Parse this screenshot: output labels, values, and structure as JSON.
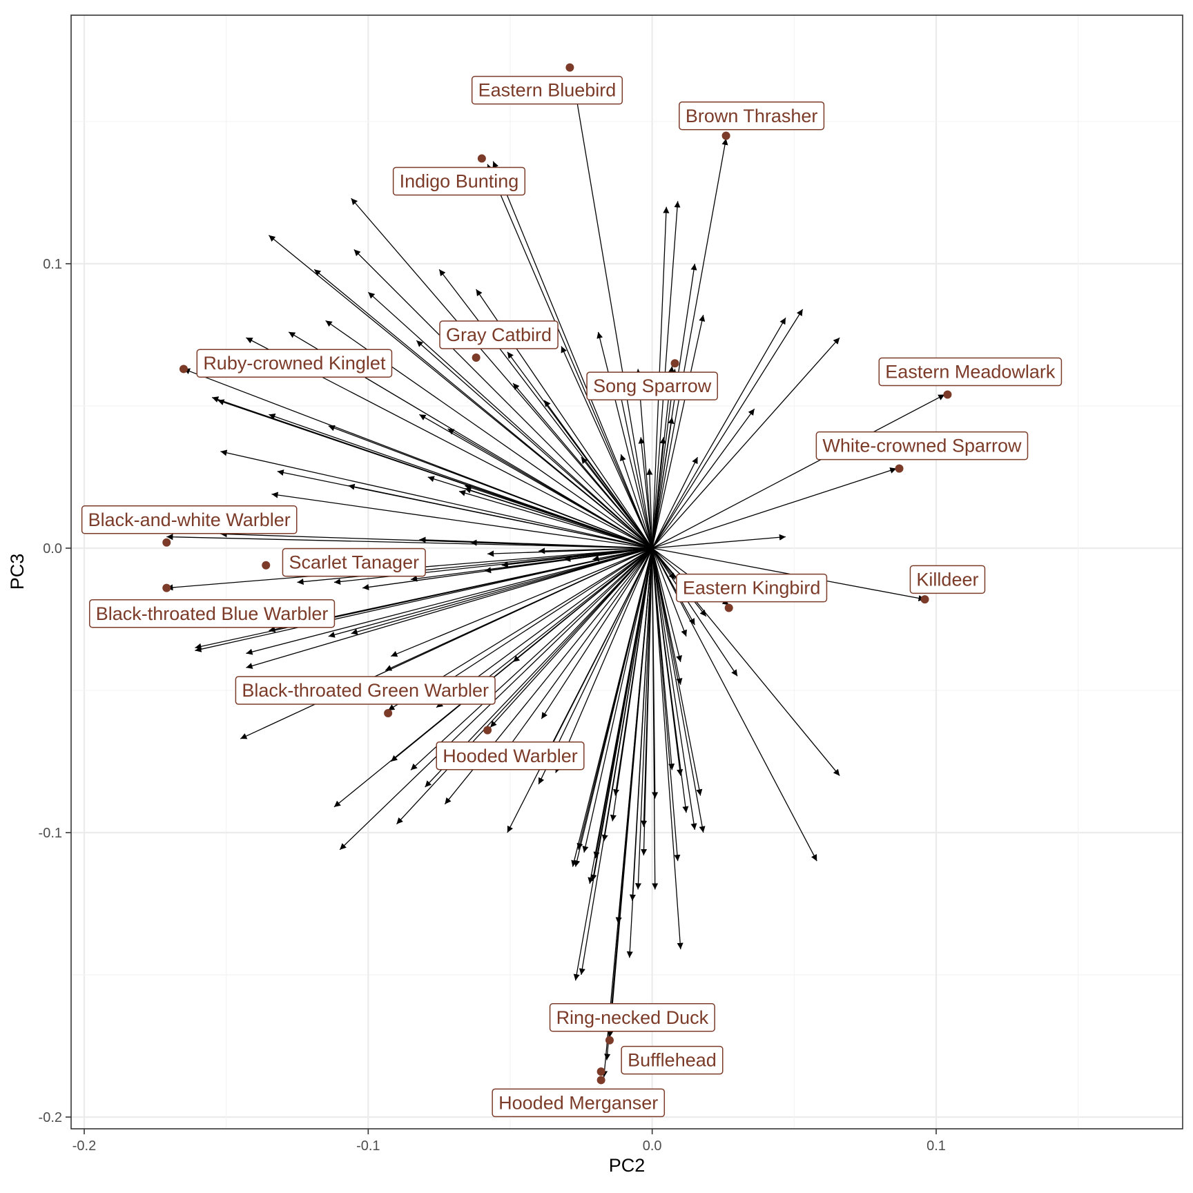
{
  "chart_data": {
    "type": "scatter",
    "title": "",
    "xlabel": "PC2",
    "ylabel": "PC3",
    "xlim": [
      -0.2,
      0.19
    ],
    "ylim": [
      -0.2,
      0.19
    ],
    "x_ticks": [
      -0.2,
      -0.1,
      0.0,
      0.1
    ],
    "y_ticks": [
      0.1,
      0.0,
      -0.1,
      -0.2
    ],
    "x_tick_labels": [
      "-0.2",
      "-0.1",
      "0.0",
      "0.1"
    ],
    "y_tick_labels": [
      "0.1",
      "0.0",
      "-0.1",
      "-0.2"
    ],
    "grid": true,
    "colors": {
      "point": "#7b3b28",
      "arrow": "#000000",
      "grid": "#ebebeb"
    },
    "labeled_points": [
      {
        "name": "Eastern Bluebird",
        "x": -0.029,
        "y": 0.169,
        "label_x": -0.037,
        "label_y": 0.161
      },
      {
        "name": "Brown Thrasher",
        "x": 0.026,
        "y": 0.145,
        "label_x": 0.035,
        "label_y": 0.152
      },
      {
        "name": "Indigo Bunting",
        "x": -0.06,
        "y": 0.137,
        "label_x": -0.068,
        "label_y": 0.129
      },
      {
        "name": "Gray Catbird",
        "x": -0.062,
        "y": 0.067,
        "label_x": -0.054,
        "label_y": 0.075
      },
      {
        "name": "Song Sparrow",
        "x": 0.008,
        "y": 0.065,
        "label_x": 0.0,
        "label_y": 0.057
      },
      {
        "name": "Ruby-crowned Kinglet",
        "x": -0.165,
        "y": 0.063,
        "label_x": -0.126,
        "label_y": 0.065
      },
      {
        "name": "Eastern Meadowlark",
        "x": 0.104,
        "y": 0.054,
        "label_x": 0.112,
        "label_y": 0.062
      },
      {
        "name": "White-crowned Sparrow",
        "x": 0.087,
        "y": 0.028,
        "label_x": 0.095,
        "label_y": 0.036
      },
      {
        "name": "Black-and-white Warbler",
        "x": -0.171,
        "y": 0.002,
        "label_x": -0.163,
        "label_y": 0.01
      },
      {
        "name": "Scarlet Tanager",
        "x": -0.136,
        "y": -0.006,
        "label_x": -0.105,
        "label_y": -0.005
      },
      {
        "name": "Killdeer",
        "x": 0.096,
        "y": -0.018,
        "label_x": 0.104,
        "label_y": -0.011
      },
      {
        "name": "Eastern Kingbird",
        "x": 0.027,
        "y": -0.021,
        "label_x": 0.035,
        "label_y": -0.014
      },
      {
        "name": "Black-throated Blue Warbler",
        "x": -0.171,
        "y": -0.014,
        "label_x": -0.155,
        "label_y": -0.023
      },
      {
        "name": "Black-throated Green Warbler",
        "x": -0.093,
        "y": -0.058,
        "label_x": -0.101,
        "label_y": -0.05
      },
      {
        "name": "Hooded Warbler",
        "x": -0.058,
        "y": -0.064,
        "label_x": -0.05,
        "label_y": -0.073
      },
      {
        "name": "Ring-necked Duck",
        "x": -0.015,
        "y": -0.173,
        "label_x": -0.007,
        "label_y": -0.165
      },
      {
        "name": "Bufflehead",
        "x": -0.018,
        "y": -0.184,
        "label_x": 0.007,
        "label_y": -0.18
      },
      {
        "name": "Hooded Merganser",
        "x": -0.018,
        "y": -0.187,
        "label_x": -0.026,
        "label_y": -0.195
      }
    ],
    "loading_arrows": [
      [
        -0.028,
        0.166
      ],
      [
        -0.056,
        0.136
      ],
      [
        -0.058,
        0.135
      ],
      [
        0.026,
        0.144
      ],
      [
        -0.106,
        0.123
      ],
      [
        -0.135,
        0.11
      ],
      [
        -0.105,
        0.105
      ],
      [
        -0.119,
        0.098
      ],
      [
        -0.075,
        0.098
      ],
      [
        -0.062,
        0.091
      ],
      [
        -0.1,
        0.09
      ],
      [
        -0.143,
        0.074
      ],
      [
        -0.128,
        0.076
      ],
      [
        -0.115,
        0.08
      ],
      [
        0.009,
        0.122
      ],
      [
        0.005,
        0.12
      ],
      [
        0.015,
        0.1
      ],
      [
        0.018,
        0.082
      ],
      [
        -0.019,
        0.076
      ],
      [
        -0.032,
        0.071
      ],
      [
        0.047,
        0.081
      ],
      [
        0.053,
        0.084
      ],
      [
        0.066,
        0.074
      ],
      [
        -0.155,
        0.053
      ],
      [
        -0.153,
        0.052
      ],
      [
        -0.135,
        0.047
      ],
      [
        -0.083,
        0.073
      ],
      [
        -0.165,
        0.063
      ],
      [
        -0.114,
        0.043
      ],
      [
        -0.082,
        0.047
      ],
      [
        -0.072,
        0.042
      ],
      [
        -0.051,
        0.069
      ],
      [
        -0.049,
        0.058
      ],
      [
        -0.038,
        0.052
      ],
      [
        -0.005,
        0.063
      ],
      [
        0.007,
        0.064
      ],
      [
        0.008,
        0.063
      ],
      [
        -0.012,
        0.058
      ],
      [
        0.007,
        0.046
      ],
      [
        0.004,
        0.039
      ],
      [
        0.036,
        0.049
      ],
      [
        -0.152,
        0.034
      ],
      [
        -0.132,
        0.027
      ],
      [
        -0.107,
        0.022
      ],
      [
        -0.079,
        0.025
      ],
      [
        -0.066,
        0.022
      ],
      [
        -0.025,
        0.032
      ],
      [
        0.016,
        0.032
      ],
      [
        -0.134,
        0.019
      ],
      [
        -0.066,
        0.021
      ],
      [
        -0.068,
        0.02
      ],
      [
        -0.011,
        0.033
      ],
      [
        -0.004,
        0.039
      ],
      [
        -0.001,
        0.028
      ],
      [
        0.103,
        0.054
      ],
      [
        0.086,
        0.028
      ],
      [
        -0.171,
        0.004
      ],
      [
        -0.152,
        0.005
      ],
      [
        -0.082,
        0.003
      ],
      [
        -0.064,
        0.002
      ],
      [
        0.047,
        0.004
      ],
      [
        -0.058,
        -0.002
      ],
      [
        -0.04,
        -0.001
      ],
      [
        -0.021,
        -0.004
      ],
      [
        -0.171,
        -0.014
      ],
      [
        -0.125,
        -0.012
      ],
      [
        -0.112,
        -0.012
      ],
      [
        -0.102,
        -0.014
      ],
      [
        -0.085,
        -0.011
      ],
      [
        -0.059,
        -0.008
      ],
      [
        -0.053,
        -0.006
      ],
      [
        -0.031,
        -0.004
      ],
      [
        0.096,
        -0.018
      ],
      [
        0.027,
        -0.02
      ],
      [
        0.008,
        -0.011
      ],
      [
        0.014,
        -0.013
      ],
      [
        -0.161,
        -0.036
      ],
      [
        -0.161,
        -0.035
      ],
      [
        -0.143,
        -0.037
      ],
      [
        -0.135,
        -0.029
      ],
      [
        -0.114,
        -0.031
      ],
      [
        -0.106,
        -0.03
      ],
      [
        -0.092,
        -0.038
      ],
      [
        -0.143,
        -0.042
      ],
      [
        -0.094,
        -0.043
      ],
      [
        -0.145,
        -0.067
      ],
      [
        -0.093,
        -0.057
      ],
      [
        -0.08,
        -0.052
      ],
      [
        -0.076,
        -0.056
      ],
      [
        -0.061,
        -0.048
      ],
      [
        -0.049,
        -0.04
      ],
      [
        -0.057,
        -0.063
      ],
      [
        -0.039,
        -0.06
      ],
      [
        0.01,
        -0.04
      ],
      [
        0.012,
        -0.031
      ],
      [
        0.015,
        -0.027
      ],
      [
        0.019,
        -0.024
      ],
      [
        0.03,
        -0.045
      ],
      [
        0.066,
        -0.08
      ],
      [
        0.058,
        -0.11
      ],
      [
        -0.112,
        -0.091
      ],
      [
        -0.11,
        -0.106
      ],
      [
        -0.092,
        -0.075
      ],
      [
        -0.09,
        -0.097
      ],
      [
        -0.085,
        -0.078
      ],
      [
        -0.08,
        -0.084
      ],
      [
        -0.073,
        -0.09
      ],
      [
        -0.052,
        -0.072
      ],
      [
        -0.051,
        -0.1
      ],
      [
        -0.04,
        -0.078
      ],
      [
        -0.04,
        -0.083
      ],
      [
        -0.034,
        -0.079
      ],
      [
        0.01,
        -0.048
      ],
      [
        0.017,
        -0.087
      ],
      [
        0.018,
        -0.1
      ],
      [
        0.015,
        -0.099
      ],
      [
        0.012,
        -0.093
      ],
      [
        0.01,
        -0.08
      ],
      [
        0.009,
        -0.11
      ],
      [
        0.007,
        -0.078
      ],
      [
        0.01,
        -0.141
      ],
      [
        0.001,
        -0.088
      ],
      [
        0.001,
        -0.12
      ],
      [
        -0.003,
        -0.098
      ],
      [
        -0.003,
        -0.108
      ],
      [
        -0.005,
        -0.12
      ],
      [
        -0.007,
        -0.124
      ],
      [
        -0.008,
        -0.144
      ],
      [
        -0.012,
        -0.132
      ],
      [
        -0.013,
        -0.087
      ],
      [
        -0.014,
        -0.096
      ],
      [
        -0.017,
        -0.103
      ],
      [
        -0.02,
        -0.109
      ],
      [
        -0.021,
        -0.117
      ],
      [
        -0.022,
        -0.118
      ],
      [
        -0.024,
        -0.107
      ],
      [
        -0.026,
        -0.106
      ],
      [
        -0.027,
        -0.112
      ],
      [
        -0.028,
        -0.112
      ],
      [
        -0.027,
        -0.152
      ],
      [
        -0.025,
        -0.15
      ],
      [
        -0.015,
        -0.172
      ],
      [
        -0.016,
        -0.18
      ],
      [
        -0.017,
        -0.186
      ]
    ]
  }
}
